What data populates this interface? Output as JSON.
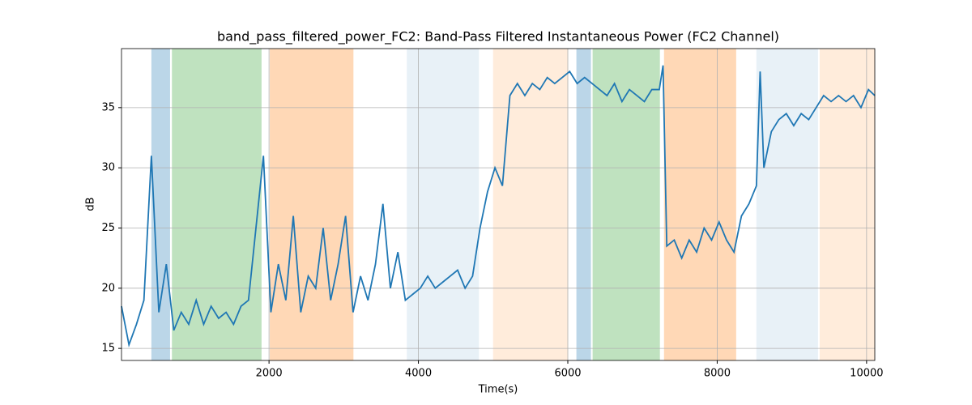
{
  "chart_data": {
    "type": "line",
    "title": "band_pass_filtered_power_FC2: Band-Pass Filtered Instantaneous Power (FC2 Channel)",
    "xlabel": "Time(s)",
    "ylabel": "dB",
    "xlim": [
      25,
      10110
    ],
    "ylim": [
      14,
      39.9
    ],
    "xticks": [
      2000,
      4000,
      6000,
      8000,
      10000
    ],
    "yticks": [
      15,
      20,
      25,
      30,
      35
    ],
    "grid": true,
    "spans": [
      {
        "x": [
          425,
          675
        ],
        "color": "#1f77b4",
        "alpha": 0.3
      },
      {
        "x": [
          700,
          1900
        ],
        "color": "#2ca02c",
        "alpha": 0.3
      },
      {
        "x": [
          2010,
          3130
        ],
        "color": "#ff7f0e",
        "alpha": 0.3
      },
      {
        "x": [
          3845,
          4810
        ],
        "color": "#1f77b4",
        "alpha": 0.1
      },
      {
        "x": [
          5000,
          6005
        ],
        "color": "#ff7f0e",
        "alpha": 0.15
      },
      {
        "x": [
          6115,
          6310
        ],
        "color": "#1f77b4",
        "alpha": 0.3
      },
      {
        "x": [
          6332,
          7233
        ],
        "color": "#2ca02c",
        "alpha": 0.3
      },
      {
        "x": [
          7288,
          8254
        ],
        "color": "#ff7f0e",
        "alpha": 0.3
      },
      {
        "x": [
          8525,
          9350
        ],
        "color": "#1f77b4",
        "alpha": 0.1
      },
      {
        "x": [
          9372,
          10110
        ],
        "color": "#ff7f0e",
        "alpha": 0.15
      }
    ],
    "x": [
      25,
      125,
      225,
      325,
      425,
      525,
      625,
      725,
      825,
      925,
      1025,
      1125,
      1225,
      1325,
      1425,
      1525,
      1625,
      1725,
      1825,
      1925,
      2025,
      2125,
      2225,
      2325,
      2425,
      2525,
      2625,
      2725,
      2825,
      2925,
      3025,
      3125,
      3225,
      3325,
      3425,
      3525,
      3625,
      3725,
      3825,
      3925,
      4025,
      4125,
      4225,
      4325,
      4425,
      4525,
      4625,
      4725,
      4825,
      4925,
      5025,
      5125,
      5225,
      5325,
      5425,
      5525,
      5625,
      5725,
      5825,
      5925,
      6025,
      6125,
      6225,
      6325,
      6425,
      6525,
      6625,
      6725,
      6825,
      6925,
      7025,
      7125,
      7225,
      7275,
      7325,
      7425,
      7525,
      7625,
      7725,
      7825,
      7925,
      8025,
      8125,
      8225,
      8325,
      8425,
      8525,
      8575,
      8625,
      8725,
      8825,
      8925,
      9025,
      9125,
      9225,
      9325,
      9425,
      9525,
      9625,
      9725,
      9825,
      9925,
      10025,
      10110
    ],
    "series": [
      {
        "color": "#1f77b4",
        "values": [
          18.5,
          15.3,
          17,
          19,
          31,
          18,
          22,
          16.5,
          18,
          17,
          19,
          17,
          18.5,
          17.5,
          18,
          17,
          18.5,
          19,
          25,
          31,
          18,
          22,
          19,
          26,
          18,
          21,
          20,
          25,
          19,
          22,
          26,
          18,
          21,
          19,
          22,
          27,
          20,
          23,
          19,
          19.5,
          20,
          21,
          20,
          20.5,
          21,
          21.5,
          20,
          21,
          25,
          28,
          30,
          28.5,
          36,
          37,
          36,
          37,
          36.5,
          37.5,
          37,
          37.5,
          38,
          37,
          37.5,
          37,
          36.5,
          36,
          37,
          35.5,
          36.5,
          36,
          35.5,
          36.5,
          36.5,
          38.5,
          23.5,
          24,
          22.5,
          24,
          23,
          25,
          24,
          25.5,
          24,
          23,
          26,
          27,
          28.5,
          38,
          30,
          33,
          34,
          34.5,
          33.5,
          34.5,
          34,
          35,
          36,
          35.5,
          36,
          35.5,
          36,
          35,
          36.5,
          36
        ]
      }
    ]
  }
}
